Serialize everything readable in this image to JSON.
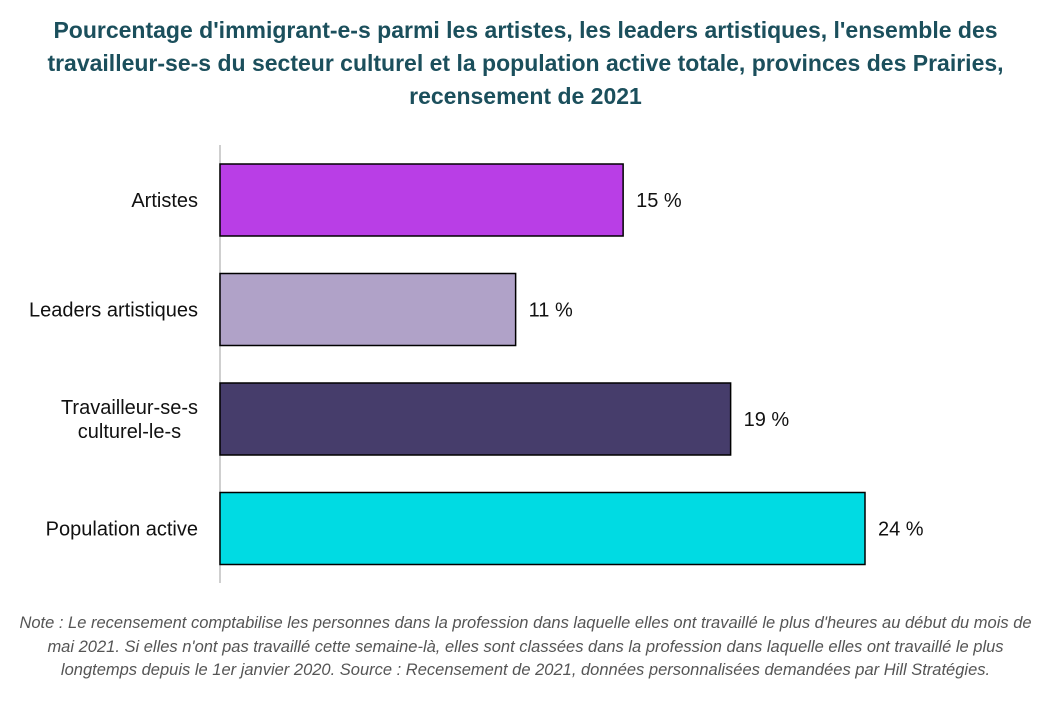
{
  "chart_data": {
    "type": "bar",
    "orientation": "horizontal",
    "title": "Pourcentage d'immigrant-e-s parmi les artistes, les leaders artistiques, l'ensemble des travailleur-se-s du secteur culturel et la population active totale, provinces des Prairies, recensement de 2021",
    "categories": [
      [
        "Artistes"
      ],
      [
        "Leaders artistiques"
      ],
      [
        "Travailleur-se-s",
        "culturel-le-s"
      ],
      [
        "Population active"
      ]
    ],
    "values": [
      15,
      11,
      19,
      24
    ],
    "value_labels": [
      "15 %",
      "11 %",
      "19 %",
      "24 %"
    ],
    "colors": [
      "#b93ee6",
      "#b0a2c8",
      "#463d6b",
      "#00dbe3"
    ],
    "xlim": [
      0,
      30
    ],
    "grid": false,
    "legend": "none",
    "note": "Note : Le recensement comptabilise les personnes dans la profession dans laquelle elles ont travaillé le plus d'heures au début du mois de mai 2021. Si elles n'ont pas travaillé cette semaine-là, elles sont classées dans la profession dans laquelle elles ont travaillé le plus longtemps depuis le 1er janvier 2020. Source : Recensement de 2021, données personnalisées demandées par Hill Stratégies."
  }
}
